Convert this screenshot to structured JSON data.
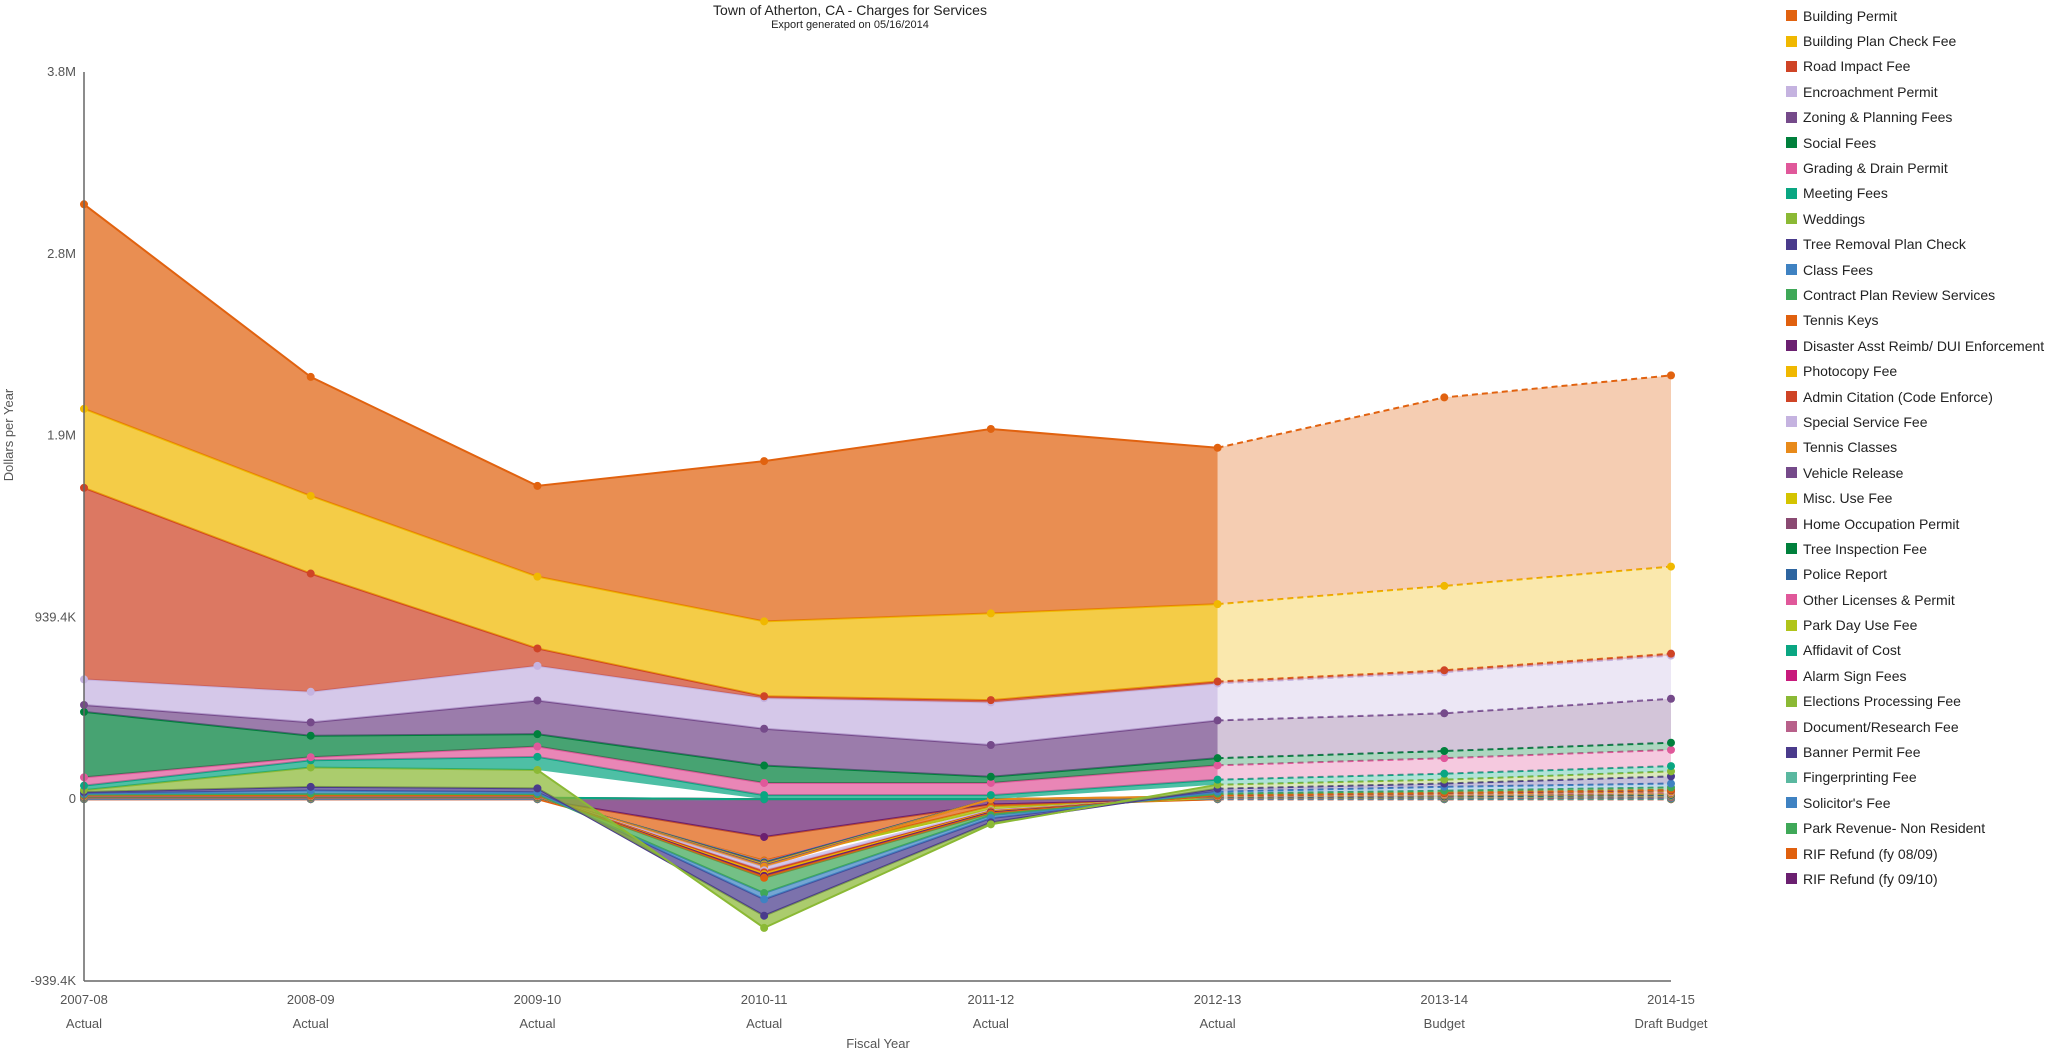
{
  "chart_data": {
    "type": "area",
    "stacked": true,
    "title": "Town of Atherton, CA - Charges for Services",
    "subtitle": "Export generated on 05/16/2014",
    "xlabel": "Fiscal Year",
    "ylabel": "Dollars per Year",
    "ylim": [
      -939400,
      3757600
    ],
    "y_ticks": [
      {
        "value": -939400,
        "label": "-939.4K"
      },
      {
        "value": 0,
        "label": "0"
      },
      {
        "value": 939400,
        "label": "939.4K"
      },
      {
        "value": 1878800,
        "label": "1.9M"
      },
      {
        "value": 2818200,
        "label": "2.8M"
      },
      {
        "value": 3757600,
        "label": "3.8M"
      }
    ],
    "categories": [
      {
        "year": "2007-08",
        "type": "Actual"
      },
      {
        "year": "2008-09",
        "type": "Actual"
      },
      {
        "year": "2009-10",
        "type": "Actual"
      },
      {
        "year": "2010-11",
        "type": "Actual"
      },
      {
        "year": "2011-12",
        "type": "Actual"
      },
      {
        "year": "2012-13",
        "type": "Actual"
      },
      {
        "year": "2013-14",
        "type": "Budget"
      },
      {
        "year": "2014-15",
        "type": "Draft Budget"
      }
    ],
    "projected_from": "2012-13",
    "grid": false,
    "legend_position": "right",
    "series": [
      {
        "name": "Building Permit",
        "color": "#e1620f",
        "values": [
          1057000,
          615000,
          469000,
          828000,
          953000,
          808000,
          974000,
          988000
        ]
      },
      {
        "name": "Building Plan Check Fee",
        "color": "#f0b800",
        "values": [
          408000,
          401000,
          371000,
          387000,
          448000,
          400000,
          436000,
          450000
        ]
      },
      {
        "name": "Road Impact Fee",
        "color": "#cf4426",
        "values": [
          990000,
          611000,
          90000,
          10000,
          12000,
          10000,
          10000,
          10000
        ]
      },
      {
        "name": "Encroachment Permit",
        "color": "#c5b3e0",
        "values": [
          132000,
          158000,
          179000,
          158000,
          220000,
          191000,
          212000,
          223000
        ]
      },
      {
        "name": "Zoning & Planning Fees",
        "color": "#754a8a",
        "values": [
          36000,
          69000,
          174000,
          190000,
          164000,
          195000,
          195000,
          227000
        ]
      },
      {
        "name": "Social Fees",
        "color": "#00803c",
        "values": [
          338000,
          111000,
          64000,
          90000,
          32000,
          37000,
          37000,
          37000
        ]
      },
      {
        "name": "Grading & Drain  Permit",
        "color": "#e0589a",
        "values": [
          43000,
          16000,
          53000,
          63000,
          63000,
          74000,
          80000,
          84000
        ]
      },
      {
        "name": "Meeting Fees",
        "color": "#0aa682",
        "values": [
          23000,
          37000,
          68000,
          21000,
          21000,
          26000,
          31000,
          27000
        ]
      },
      {
        "name": "Weddings",
        "color": "#8bb935",
        "values": [
          10000,
          100000,
          95000,
          -63000,
          -10000,
          21000,
          20000,
          26000
        ]
      },
      {
        "name": "Tree Removal Plan Check",
        "color": "#4a3b8c",
        "values": [
          8000,
          20000,
          20000,
          -85000,
          -22000,
          15000,
          17000,
          37000
        ]
      },
      {
        "name": "Class Fees",
        "color": "#3f82c2",
        "values": [
          5000,
          15000,
          10000,
          -32000,
          -15000,
          10000,
          20000,
          20000
        ]
      },
      {
        "name": "Contract Plan Review Services",
        "color": "#3fa858",
        "values": [
          3000,
          8000,
          5000,
          -79000,
          -10000,
          8000,
          10000,
          12000
        ]
      },
      {
        "name": "Tennis Keys",
        "color": "#e0600e",
        "values": [
          1000,
          1000,
          1000,
          -10000,
          -5000,
          1000,
          2000,
          3000
        ]
      },
      {
        "name": "Disaster Asst Reimb/ DUI Enforcement",
        "color": "#6b2070",
        "values": [
          1000,
          1000,
          1000,
          -8000,
          -3000,
          1000,
          2000,
          3000
        ]
      },
      {
        "name": "Photocopy Fee",
        "color": "#f0b800",
        "values": [
          1000,
          1000,
          1000,
          -10000,
          -3000,
          1000,
          2000,
          3000
        ]
      },
      {
        "name": "Admin Citation (Code Enforce)",
        "color": "#cf4426",
        "values": [
          1000,
          1000,
          1000,
          -10000,
          -3000,
          1000,
          2000,
          3000
        ]
      },
      {
        "name": "Special Service Fee",
        "color": "#c5b3e0",
        "values": [
          1000,
          1000,
          1000,
          -20000,
          -8000,
          1000,
          2000,
          3000
        ]
      },
      {
        "name": "Tennis Classes",
        "color": "#e88a1a",
        "values": [
          1000,
          1000,
          1000,
          -5000,
          0,
          1000,
          2000,
          3000
        ]
      },
      {
        "name": "Vehicle Release",
        "color": "#754a8a",
        "values": [
          1000,
          1000,
          1000,
          -5000,
          0,
          1000,
          2000,
          3000
        ]
      },
      {
        "name": "Misc. Use Fee",
        "color": "#d4c400",
        "values": [
          1000,
          1000,
          1000,
          -5000,
          0,
          1000,
          2000,
          2000
        ]
      },
      {
        "name": "Home Occupation Permit",
        "color": "#8a4a72",
        "values": [
          1000,
          1000,
          1000,
          -3000,
          0,
          1000,
          2000,
          2000
        ]
      },
      {
        "name": "Tree Inspection Fee",
        "color": "#00803c",
        "values": [
          1000,
          1000,
          1000,
          -3000,
          0,
          1000,
          2000,
          2000
        ]
      },
      {
        "name": "Police Report",
        "color": "#2e65a0",
        "values": [
          1000,
          1000,
          1000,
          -3000,
          0,
          1000,
          2000,
          2000
        ]
      },
      {
        "name": "Other Licenses & Permit",
        "color": "#e0589a",
        "values": [
          1000,
          1000,
          1000,
          -2000,
          0,
          1000,
          2000,
          2000
        ]
      },
      {
        "name": "Park Day Use Fee",
        "color": "#b0c41a",
        "values": [
          1000,
          1000,
          1000,
          -5000,
          -14000,
          1000,
          2000,
          2000
        ]
      },
      {
        "name": "Affidavit of Cost",
        "color": "#0aa682",
        "values": [
          1000,
          1000,
          1000,
          0,
          0,
          1000,
          1000,
          2000
        ]
      },
      {
        "name": "Alarm Sign Fees",
        "color": "#c81a7c",
        "values": [
          1000,
          1000,
          1000,
          0,
          0,
          1000,
          1000,
          2000
        ]
      },
      {
        "name": "Elections Processing Fee",
        "color": "#8bb935",
        "values": [
          1000,
          1000,
          1000,
          0,
          0,
          1000,
          1000,
          2000
        ]
      },
      {
        "name": "Document/Research Fee",
        "color": "#b8608a",
        "values": [
          1000,
          1000,
          1000,
          0,
          0,
          1000,
          1000,
          2000
        ]
      },
      {
        "name": "Banner Permit Fee",
        "color": "#4a3b8c",
        "values": [
          1000,
          1000,
          1000,
          0,
          0,
          1000,
          1000,
          2000
        ]
      },
      {
        "name": "Fingerprinting Fee",
        "color": "#5ab8a0",
        "values": [
          1000,
          1000,
          1000,
          0,
          0,
          1000,
          1000,
          2000
        ]
      },
      {
        "name": "Solicitor's Fee",
        "color": "#3f82c2",
        "values": [
          1000,
          1000,
          1000,
          0,
          0,
          1000,
          1000,
          2000
        ]
      },
      {
        "name": "Park Revenue- Non Resident",
        "color": "#3fa858",
        "values": [
          1000,
          1000,
          1000,
          0,
          0,
          1000,
          1000,
          2000
        ]
      },
      {
        "name": "RIF Refund (fy 08/09)",
        "color": "#e0600e",
        "values": [
          0,
          0,
          0,
          -122000,
          -10000,
          0,
          0,
          0
        ]
      },
      {
        "name": "RIF Refund (fy 09/10)",
        "color": "#6b2070",
        "values": [
          0,
          0,
          0,
          -195000,
          -27000,
          0,
          0,
          0
        ]
      }
    ]
  }
}
